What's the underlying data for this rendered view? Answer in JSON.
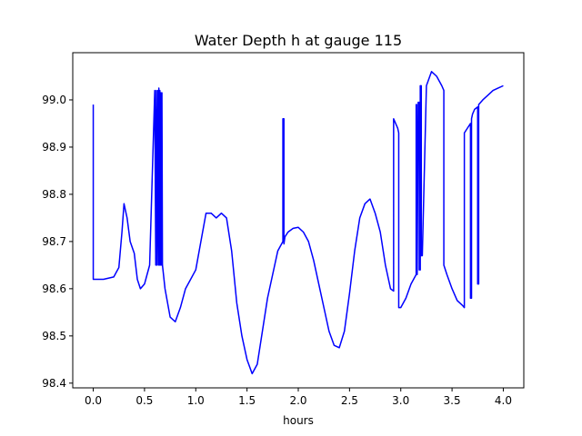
{
  "chart_data": {
    "type": "line",
    "title": "Water Depth h at gauge 115",
    "xlabel": "hours",
    "ylabel": "",
    "xlim": [
      -0.2,
      4.2
    ],
    "ylim": [
      98.39,
      99.1
    ],
    "xticks": [
      0.0,
      0.5,
      1.0,
      1.5,
      2.0,
      2.5,
      3.0,
      3.5,
      4.0
    ],
    "xtick_labels": [
      "0.0",
      "0.5",
      "1.0",
      "1.5",
      "2.0",
      "2.5",
      "3.0",
      "3.5",
      "4.0"
    ],
    "yticks": [
      98.4,
      98.5,
      98.6,
      98.7,
      98.8,
      98.9,
      99.0
    ],
    "ytick_labels": [
      "98.4",
      "98.5",
      "98.6",
      "98.7",
      "98.8",
      "98.9",
      "99.0"
    ],
    "grid": false,
    "series": [
      {
        "color": "#0000ff",
        "x": [
          0.0,
          0.0,
          0.0,
          0.1,
          0.2,
          0.25,
          0.28,
          0.3,
          0.33,
          0.36,
          0.4,
          0.43,
          0.46,
          0.5,
          0.55,
          0.6,
          0.61,
          0.615,
          0.62,
          0.63,
          0.635,
          0.64,
          0.645,
          0.65,
          0.655,
          0.66,
          0.665,
          0.67,
          0.675,
          0.68,
          0.7,
          0.75,
          0.8,
          0.85,
          0.9,
          0.95,
          1.0,
          1.05,
          1.1,
          1.15,
          1.2,
          1.25,
          1.3,
          1.35,
          1.4,
          1.45,
          1.5,
          1.55,
          1.6,
          1.65,
          1.7,
          1.75,
          1.8,
          1.85,
          1.85,
          1.86,
          1.86,
          1.87,
          1.9,
          1.95,
          2.0,
          2.05,
          2.1,
          2.15,
          2.2,
          2.25,
          2.3,
          2.35,
          2.4,
          2.45,
          2.5,
          2.55,
          2.6,
          2.65,
          2.7,
          2.75,
          2.8,
          2.85,
          2.9,
          2.93,
          2.93,
          2.97,
          2.98,
          2.98,
          3.0,
          3.05,
          3.1,
          3.15,
          3.15,
          3.155,
          3.16,
          3.16,
          3.17,
          3.18,
          3.18,
          3.19,
          3.19,
          3.2,
          3.2,
          3.21,
          3.25,
          3.3,
          3.35,
          3.4,
          3.42,
          3.42,
          3.45,
          3.5,
          3.55,
          3.6,
          3.62,
          3.62,
          3.65,
          3.68,
          3.68,
          3.69,
          3.69,
          3.7,
          3.72,
          3.75,
          3.75,
          3.76,
          3.76,
          3.8,
          3.85,
          3.9,
          3.95,
          4.0
        ],
        "y": [
          98.99,
          98.99,
          98.62,
          98.62,
          98.625,
          98.645,
          98.72,
          98.78,
          98.75,
          98.7,
          98.675,
          98.62,
          98.6,
          98.61,
          98.65,
          99.02,
          98.65,
          99.02,
          98.65,
          99.02,
          98.65,
          99.025,
          98.65,
          99.02,
          98.65,
          99.015,
          98.65,
          99.015,
          98.65,
          98.64,
          98.6,
          98.54,
          98.53,
          98.56,
          98.6,
          98.62,
          98.64,
          98.7,
          98.76,
          98.76,
          98.75,
          98.76,
          98.75,
          98.68,
          98.57,
          98.5,
          98.45,
          98.42,
          98.44,
          98.51,
          98.58,
          98.63,
          98.68,
          98.7,
          98.96,
          98.96,
          98.695,
          98.71,
          98.72,
          98.728,
          98.73,
          98.72,
          98.7,
          98.66,
          98.61,
          98.56,
          98.51,
          98.48,
          98.475,
          98.51,
          98.59,
          98.68,
          98.75,
          98.78,
          98.79,
          98.76,
          98.72,
          98.65,
          98.6,
          98.595,
          98.96,
          98.94,
          98.93,
          98.56,
          98.56,
          98.58,
          98.61,
          98.63,
          98.99,
          98.99,
          98.63,
          98.63,
          98.995,
          98.995,
          98.64,
          98.64,
          99.03,
          99.03,
          98.67,
          98.67,
          99.03,
          99.06,
          99.05,
          99.03,
          99.02,
          98.65,
          98.63,
          98.6,
          98.575,
          98.565,
          98.56,
          98.93,
          98.94,
          98.95,
          98.58,
          98.58,
          98.96,
          98.97,
          98.98,
          98.985,
          98.61,
          98.61,
          98.99,
          99.0,
          99.01,
          99.02,
          99.025,
          99.03
        ]
      }
    ]
  }
}
